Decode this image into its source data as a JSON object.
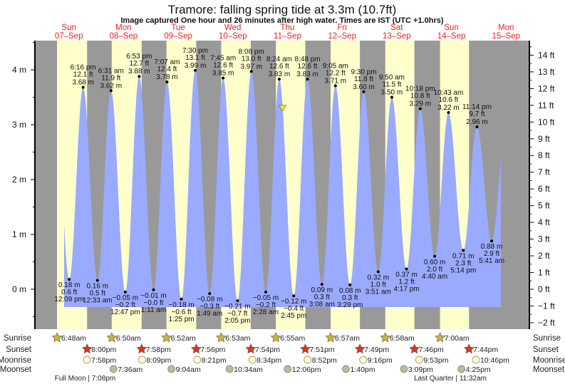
{
  "chart_data": {
    "type": "area",
    "title": "Tramore: falling  spring tide at 3.3m (10.7ft)",
    "subtitle": "Image captured One hour and 26 minutes after high water. Times are IST (UTC +1.0hrs)",
    "ylabel_left_unit": "m",
    "ylabel_right_unit": "ft",
    "ylim_m": [
      -0.65,
      4.6
    ],
    "left_ticks": [
      "0 m",
      "1 m",
      "2 m",
      "3 m",
      "4 m"
    ],
    "right_ticks": [
      "−2 ft",
      "−1 ft",
      "0 ft",
      "1 ft",
      "2 ft",
      "3 ft",
      "4 ft",
      "5 ft",
      "6 ft",
      "7 ft",
      "8 ft",
      "9 ft",
      "10 ft",
      "11 ft",
      "12 ft",
      "13 ft",
      "14 ft"
    ],
    "days": [
      {
        "dow": "Sun",
        "date": "07–Sep"
      },
      {
        "dow": "Mon",
        "date": "08–Sep"
      },
      {
        "dow": "Tue",
        "date": "09–Sep"
      },
      {
        "dow": "Wed",
        "date": "10–Sep"
      },
      {
        "dow": "Thu",
        "date": "11–Sep"
      },
      {
        "dow": "Fri",
        "date": "12–Sep"
      },
      {
        "dow": "Sat",
        "date": "13–Sep"
      },
      {
        "dow": "Sun",
        "date": "14–Sep"
      },
      {
        "dow": "Mon",
        "date": "15–Sep"
      }
    ],
    "tides": [
      {
        "day": 0,
        "type": "low",
        "time": "12:09 pm",
        "m": "0.18 m",
        "ft": "0.6 ft",
        "v": 0.18
      },
      {
        "day": 0,
        "type": "high",
        "time": "6:16 pm",
        "m": "3.68 m",
        "ft": "12.1 ft",
        "v": 3.68
      },
      {
        "day": 1,
        "type": "low",
        "time": "12:33 am",
        "m": "0.16 m",
        "ft": "0.5 ft",
        "v": 0.16
      },
      {
        "day": 1,
        "type": "high",
        "time": "6:31 am",
        "m": "3.62 m",
        "ft": "11.9 ft",
        "v": 3.62
      },
      {
        "day": 1,
        "type": "low",
        "time": "12:47 pm",
        "m": "−0.05 m",
        "ft": "−0.2 ft",
        "v": -0.05
      },
      {
        "day": 1,
        "type": "high",
        "time": "6:53 pm",
        "m": "3.88 m",
        "ft": "12.7 ft",
        "v": 3.88
      },
      {
        "day": 2,
        "type": "low",
        "time": "1:11 am",
        "m": "−0.01 m",
        "ft": "−0.0 ft",
        "v": -0.01
      },
      {
        "day": 2,
        "type": "high",
        "time": "7:07 am",
        "m": "3.78 m",
        "ft": "12.4 ft",
        "v": 3.78
      },
      {
        "day": 2,
        "type": "low",
        "time": "1:25 pm",
        "m": "−0.18 m",
        "ft": "−0.6 ft",
        "v": -0.18
      },
      {
        "day": 2,
        "type": "high",
        "time": "7:30 pm",
        "m": "3.99 m",
        "ft": "13.1 ft",
        "v": 3.99
      },
      {
        "day": 3,
        "type": "low",
        "time": "1:49 am",
        "m": "−0.08 m",
        "ft": "−0.3 ft",
        "v": -0.08
      },
      {
        "day": 3,
        "type": "high",
        "time": "7:45 am",
        "m": "3.85 m",
        "ft": "12.6 ft",
        "v": 3.85
      },
      {
        "day": 3,
        "type": "low",
        "time": "2:05 pm",
        "m": "−0.21 m",
        "ft": "−0.7 ft",
        "v": -0.21
      },
      {
        "day": 3,
        "type": "high",
        "time": "8:08 pm",
        "m": "3.97 m",
        "ft": "13.0 ft",
        "v": 3.97
      },
      {
        "day": 4,
        "type": "low",
        "time": "2:28 am",
        "m": "−0.05 m",
        "ft": "−0.2 ft",
        "v": -0.05
      },
      {
        "day": 4,
        "type": "high",
        "time": "8:24 am",
        "m": "3.83 m",
        "ft": "12.6 ft",
        "v": 3.83
      },
      {
        "day": 4,
        "type": "low",
        "time": "2:45 pm",
        "m": "−0.12 m",
        "ft": "−0.4 ft",
        "v": -0.12
      },
      {
        "day": 4,
        "type": "high",
        "time": "8:48 pm",
        "m": "3.83 m",
        "ft": "12.6 ft",
        "v": 3.83
      },
      {
        "day": 5,
        "type": "low",
        "time": "3:08 am",
        "m": "0.09 m",
        "ft": "0.3 ft",
        "v": 0.09
      },
      {
        "day": 5,
        "type": "high",
        "time": "9:05 am",
        "m": "3.71 m",
        "ft": "12.2 ft",
        "v": 3.71
      },
      {
        "day": 5,
        "type": "low",
        "time": "3:29 pm",
        "m": "0.08 m",
        "ft": "0.3 ft",
        "v": 0.08
      },
      {
        "day": 5,
        "type": "high",
        "time": "9:30 pm",
        "m": "3.60 m",
        "ft": "11.8 ft",
        "v": 3.6
      },
      {
        "day": 6,
        "type": "low",
        "time": "3:51 am",
        "m": "0.32 m",
        "ft": "1.0 ft",
        "v": 0.32
      },
      {
        "day": 6,
        "type": "high",
        "time": "9:50 am",
        "m": "3.50 m",
        "ft": "11.5 ft",
        "v": 3.5
      },
      {
        "day": 6,
        "type": "low",
        "time": "4:17 pm",
        "m": "0.37 m",
        "ft": "1.2 ft",
        "v": 0.37
      },
      {
        "day": 6,
        "type": "high",
        "time": "10:18 pm",
        "m": "3.29 m",
        "ft": "10.8 ft",
        "v": 3.29
      },
      {
        "day": 7,
        "type": "low",
        "time": "4:40 am",
        "m": "0.60 m",
        "ft": "2.0 ft",
        "v": 0.6
      },
      {
        "day": 7,
        "type": "high",
        "time": "10:43 am",
        "m": "3.22 m",
        "ft": "10.6 ft",
        "v": 3.22
      },
      {
        "day": 7,
        "type": "low",
        "time": "5:14 pm",
        "m": "0.71 m",
        "ft": "2.3 ft",
        "v": 0.71
      },
      {
        "day": 7,
        "type": "high",
        "time": "11:14 pm",
        "m": "2.96 m",
        "ft": "9.7 ft",
        "v": 2.96
      },
      {
        "day": 8,
        "type": "low",
        "time": "5:41 am",
        "m": "0.88 m",
        "ft": "2.9 ft",
        "v": 0.88
      }
    ],
    "current": {
      "day": 4,
      "time": "9:50 am",
      "v": 3.3
    },
    "rows": {
      "sunrise": {
        "label": "Sunrise",
        "times": [
          "6:48am",
          "6:50am",
          "6:52am",
          "6:53am",
          "6:55am",
          "6:57am",
          "6:58am",
          "7:00am"
        ],
        "start_day": 0
      },
      "sunset": {
        "label": "Sunset",
        "times": [
          "8:00pm",
          "7:58pm",
          "7:56pm",
          "7:54pm",
          "7:51pm",
          "7:49pm",
          "7:46pm",
          "7:44pm"
        ],
        "start_day": 0
      },
      "moonrise": {
        "label": "Moonrise",
        "times": [
          "7:58pm",
          "8:09pm",
          "8:21pm",
          "8:34pm",
          "8:52pm",
          "9:16pm",
          "9:53pm",
          "10:46pm"
        ],
        "start_day": 0
      },
      "moonset": {
        "label": "Moonset",
        "times": [
          "7:36am",
          "9:04am",
          "10:34am",
          "12:06pm",
          "1:40pm",
          "3:09pm",
          "4:25pm"
        ],
        "start_day": 1
      }
    },
    "moon_phases": [
      {
        "day": 0,
        "time": "7:08pm",
        "text": "Full Moon | 7:08pm"
      },
      {
        "day": 7,
        "time": "11:32am",
        "text": "Last Quarter | 11:32am"
      }
    ],
    "colors": {
      "water": "#9aaaff",
      "day": "#ffffcc",
      "night": "#999999",
      "sunrise": "#c8b440",
      "sunset": "#dd3322",
      "moonrise": "#ffffcc",
      "moonset": "#bbbb99",
      "daylabel": "#ee2222"
    }
  }
}
